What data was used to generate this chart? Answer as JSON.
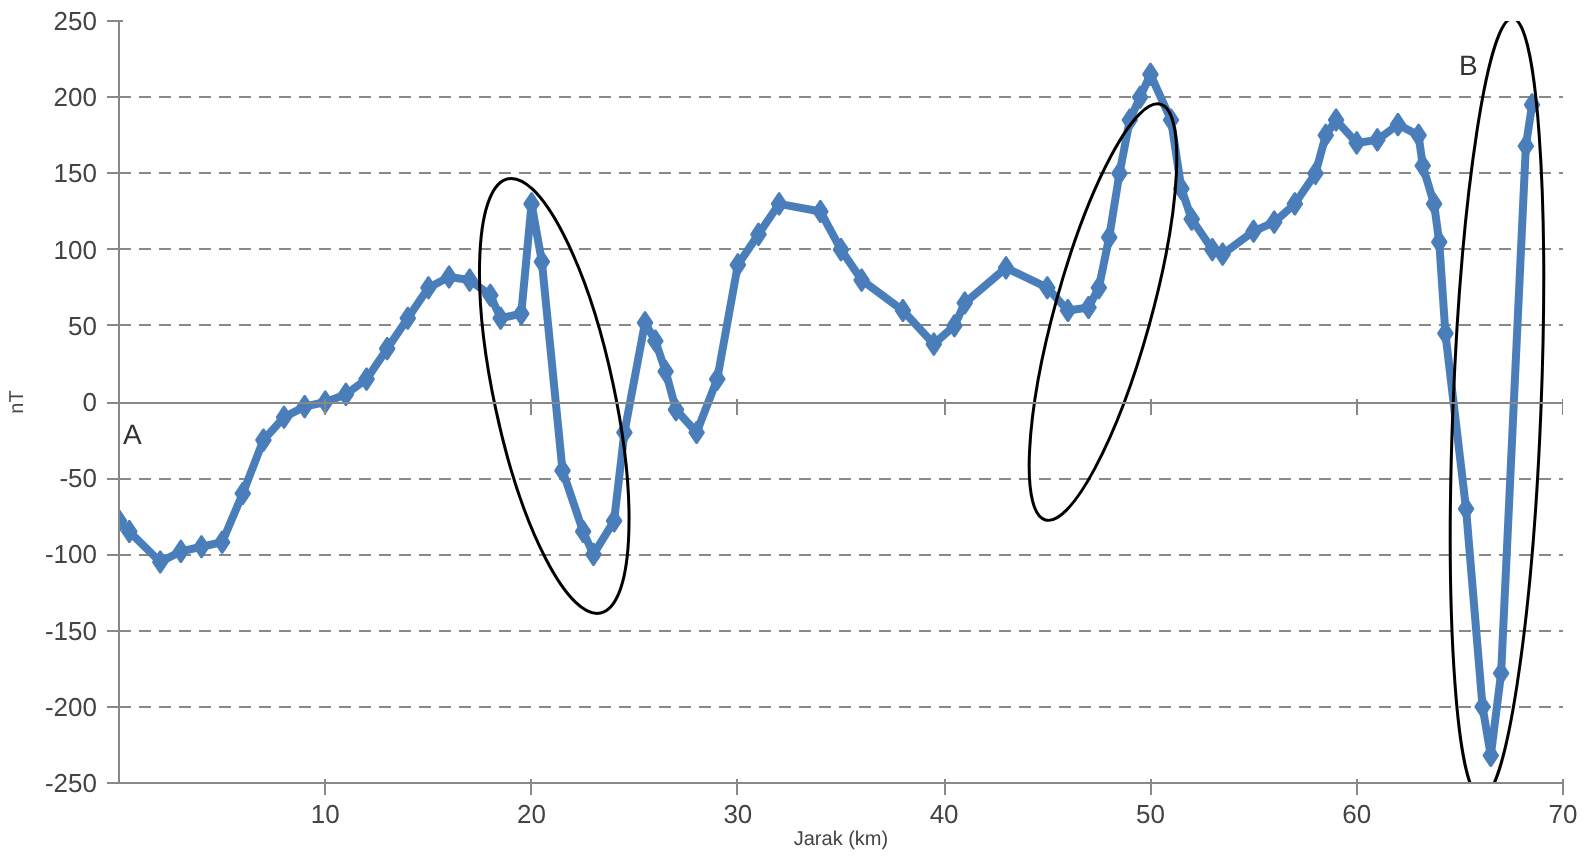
{
  "chart_data": {
    "type": "line",
    "xlabel": "Jarak (km)",
    "ylabel": "nT",
    "xlim": [
      0,
      70
    ],
    "xticks": [
      10,
      20,
      30,
      40,
      50,
      60,
      70
    ],
    "ylim": [
      -250,
      250
    ],
    "yticks": [
      -250,
      -200,
      -150,
      -100,
      -50,
      0,
      50,
      100,
      150,
      200,
      250
    ],
    "grid": "y",
    "marker": "diamond",
    "line_style": "solid",
    "annotations": [
      "A",
      "B"
    ],
    "series": [
      {
        "color": "#4a7ebb",
        "x": [
          0,
          0.5,
          2,
          3,
          4,
          5,
          6,
          7,
          8,
          9,
          10,
          11,
          12,
          13,
          14,
          15,
          16,
          17,
          18,
          18.5,
          19.5,
          20,
          20.5,
          21.5,
          22.5,
          23,
          24,
          24.5,
          25.5,
          26,
          26.5,
          27,
          28,
          29,
          30,
          31,
          32,
          34,
          35,
          36,
          38,
          39.5,
          40.5,
          41,
          43,
          45,
          46,
          47,
          47.5,
          48,
          48.5,
          49,
          49.5,
          50,
          51,
          51.5,
          52,
          53,
          53.5,
          55,
          56,
          57,
          58,
          58.5,
          59,
          60,
          61,
          62,
          63,
          63.2,
          63.75,
          64,
          64.3,
          65.3,
          66.1,
          66.5,
          67,
          68.2,
          68.5
        ],
        "values": [
          -78,
          -85,
          -105,
          -98,
          -95,
          -92,
          -60,
          -25,
          -10,
          -3,
          0,
          5,
          15,
          35,
          55,
          75,
          82,
          80,
          70,
          55,
          58,
          130,
          92,
          -45,
          -85,
          -100,
          -78,
          -20,
          52,
          40,
          20,
          -5,
          -20,
          15,
          90,
          110,
          130,
          125,
          100,
          80,
          60,
          38,
          50,
          65,
          88,
          75,
          60,
          62,
          75,
          108,
          150,
          185,
          200,
          215,
          185,
          140,
          120,
          100,
          97,
          112,
          118,
          130,
          150,
          175,
          185,
          170,
          172,
          182,
          175,
          155,
          130,
          105,
          45,
          -70,
          -200,
          -232,
          -178,
          168,
          195
        ]
      }
    ]
  }
}
